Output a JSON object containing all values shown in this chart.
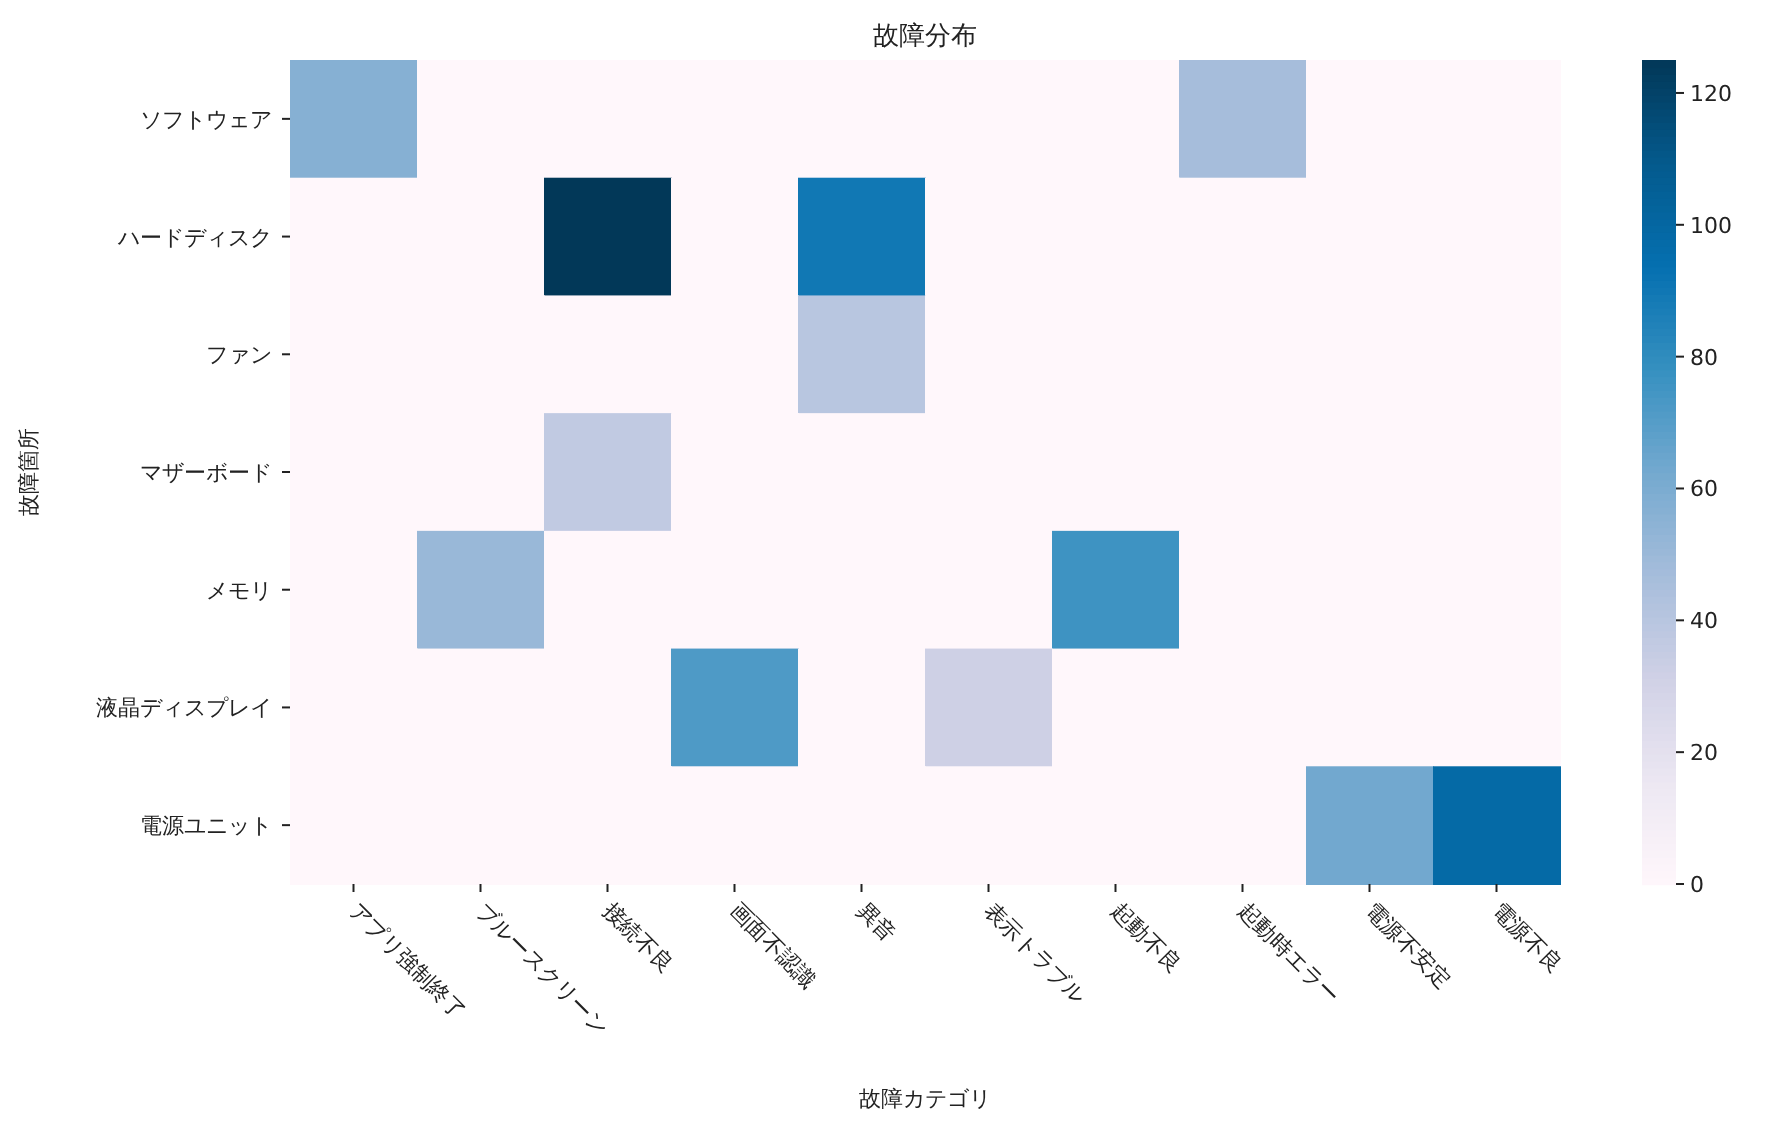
{
  "chart_data": {
    "type": "heatmap",
    "title": "故障分布",
    "xlabel": "故障カテゴリ",
    "ylabel": "故障箇所",
    "categories": [
      "アプリ強制終了",
      "ブルースクリーン",
      "接続不良",
      "画面不認識",
      "異音",
      "表示トラブル",
      "起動不良",
      "起動時エラー",
      "電源不安定",
      "電源不良"
    ],
    "y_categories": [
      "ソフトウェア",
      "ハードディスク",
      "ファン",
      "マザーボード",
      "メモリ",
      "液晶ディスプレイ",
      "電源ユニット"
    ],
    "cells": [
      [
        57,
        0,
        0,
        0,
        0,
        0,
        0,
        47,
        0,
        0
      ],
      [
        0,
        0,
        125,
        0,
        90,
        0,
        0,
        0,
        0,
        0
      ],
      [
        0,
        0,
        0,
        0,
        40,
        0,
        0,
        0,
        0,
        0
      ],
      [
        0,
        0,
        37,
        0,
        0,
        0,
        0,
        0,
        0,
        0
      ],
      [
        0,
        51,
        0,
        0,
        0,
        0,
        76,
        0,
        0,
        0
      ],
      [
        0,
        0,
        0,
        72,
        0,
        32,
        0,
        0,
        0,
        0
      ],
      [
        0,
        0,
        0,
        0,
        0,
        0,
        0,
        0,
        63,
        98
      ]
    ],
    "clim": [
      0,
      125
    ],
    "cticks": [
      0,
      20,
      40,
      60,
      80,
      100,
      120
    ]
  }
}
